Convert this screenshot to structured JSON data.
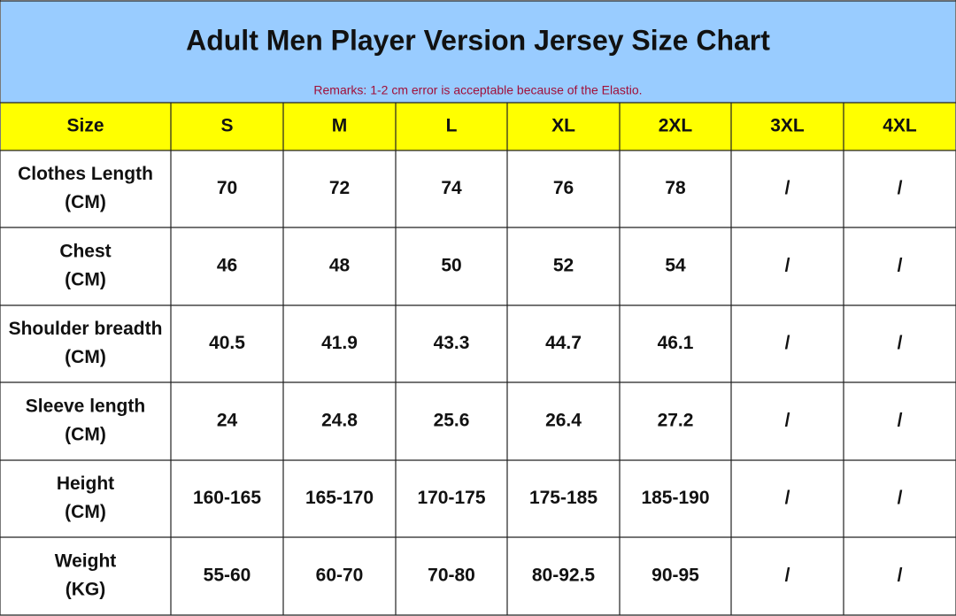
{
  "title": "Adult Men Player Version Jersey Size Chart",
  "remark": "Remarks: 1-2 cm error is acceptable because of the Elastio.",
  "table": {
    "header": [
      "Size",
      "S",
      "M",
      "L",
      "XL",
      "2XL",
      "3XL",
      "4XL"
    ],
    "rows": [
      {
        "label": [
          "Clothes Length",
          "(CM)"
        ],
        "values": [
          "70",
          "72",
          "74",
          "76",
          "78",
          "/",
          "/"
        ]
      },
      {
        "label": [
          "Chest",
          "(CM)"
        ],
        "values": [
          "46",
          "48",
          "50",
          "52",
          "54",
          "/",
          "/"
        ]
      },
      {
        "label": [
          "Shoulder breadth",
          "(CM)"
        ],
        "values": [
          "40.5",
          "41.9",
          "43.3",
          "44.7",
          "46.1",
          "/",
          "/"
        ]
      },
      {
        "label": [
          "Sleeve length",
          "(CM)"
        ],
        "values": [
          "24",
          "24.8",
          "25.6",
          "26.4",
          "27.2",
          "/",
          "/"
        ]
      },
      {
        "label": [
          "Height",
          "(CM)"
        ],
        "values": [
          "160-165",
          "165-170",
          "170-175",
          "175-185",
          "185-190",
          "/",
          "/"
        ]
      },
      {
        "label": [
          "Weight",
          "(KG)"
        ],
        "values": [
          "55-60",
          "60-70",
          "70-80",
          "80-92.5",
          "90-95",
          "/",
          "/"
        ]
      }
    ]
  }
}
